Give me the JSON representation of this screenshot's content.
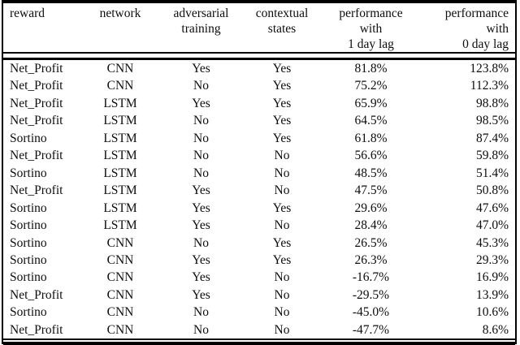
{
  "colors": {
    "background": "#ffffff",
    "text": "#0d0d0d",
    "rule": "#000000"
  },
  "table": {
    "columns": [
      {
        "id": "reward",
        "lines": [
          "reward"
        ],
        "align": "left"
      },
      {
        "id": "network",
        "lines": [
          "network"
        ],
        "align": "center"
      },
      {
        "id": "adversarial_training",
        "lines": [
          "adversarial",
          "training"
        ],
        "align": "center"
      },
      {
        "id": "contextual_states",
        "lines": [
          "contextual",
          "states"
        ],
        "align": "center"
      },
      {
        "id": "performance_1_day_lag",
        "lines": [
          "performance",
          "with",
          "1 day lag"
        ],
        "align": "center"
      },
      {
        "id": "performance_0_day_lag",
        "lines": [
          "performance",
          "with",
          "0 day lag"
        ],
        "align": "right"
      }
    ],
    "rows": [
      [
        "Net_Profit",
        "CNN",
        "Yes",
        "Yes",
        "81.8%",
        "123.8%"
      ],
      [
        "Net_Profit",
        "CNN",
        "No",
        "Yes",
        "75.2%",
        "112.3%"
      ],
      [
        "Net_Profit",
        "LSTM",
        "Yes",
        "Yes",
        "65.9%",
        "98.8%"
      ],
      [
        "Net_Profit",
        "LSTM",
        "No",
        "Yes",
        "64.5%",
        "98.5%"
      ],
      [
        "Sortino",
        "LSTM",
        "No",
        "Yes",
        "61.8%",
        "87.4%"
      ],
      [
        "Net_Profit",
        "LSTM",
        "No",
        "No",
        "56.6%",
        "59.8%"
      ],
      [
        "Sortino",
        "LSTM",
        "No",
        "No",
        "48.5%",
        "51.4%"
      ],
      [
        "Net_Profit",
        "LSTM",
        "Yes",
        "No",
        "47.5%",
        "50.8%"
      ],
      [
        "Sortino",
        "LSTM",
        "Yes",
        "Yes",
        "29.6%",
        "47.6%"
      ],
      [
        "Sortino",
        "LSTM",
        "Yes",
        "No",
        "28.4%",
        "47.0%"
      ],
      [
        "Sortino",
        "CNN",
        "No",
        "Yes",
        "26.5%",
        "45.3%"
      ],
      [
        "Sortino",
        "CNN",
        "Yes",
        "Yes",
        "26.3%",
        "29.3%"
      ],
      [
        "Sortino",
        "CNN",
        "Yes",
        "No",
        "-16.7%",
        "16.9%"
      ],
      [
        "Net_Profit",
        "CNN",
        "Yes",
        "No",
        "-29.5%",
        "13.9%"
      ],
      [
        "Sortino",
        "CNN",
        "No",
        "No",
        "-45.0%",
        "10.6%"
      ],
      [
        "Net_Profit",
        "CNN",
        "No",
        "No",
        "-47.7%",
        "8.6%"
      ]
    ]
  }
}
